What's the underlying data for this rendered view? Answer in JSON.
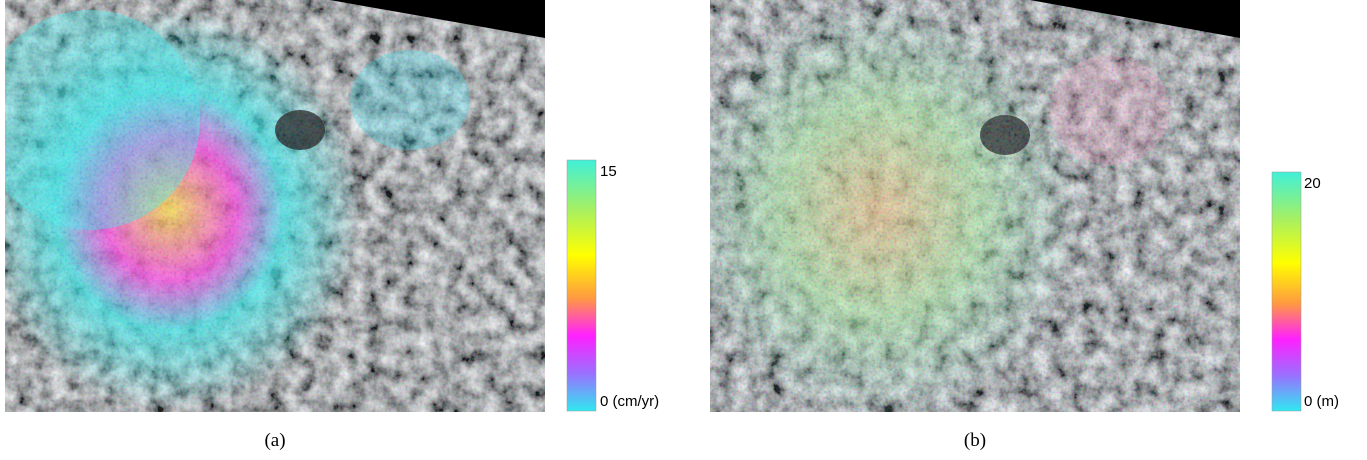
{
  "panels": [
    {
      "caption": "(a)",
      "colorbar": {
        "top_label": "15",
        "bottom_label": "0 (cm/yr)"
      }
    },
    {
      "caption": "(b)",
      "colorbar": {
        "top_label": "20",
        "bottom_label": "0 (m)"
      }
    }
  ]
}
